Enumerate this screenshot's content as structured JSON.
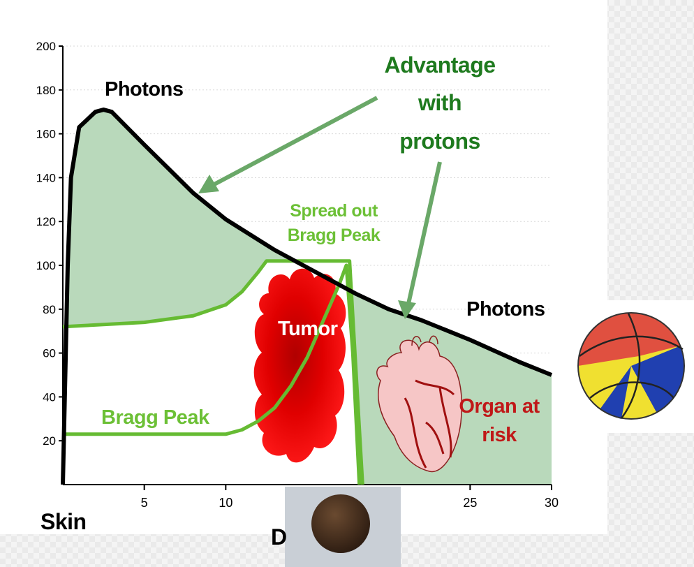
{
  "chart_data": {
    "type": "line",
    "xlim": [
      0,
      30
    ],
    "ylim": [
      0,
      200
    ],
    "xticks": [
      5,
      10,
      25,
      30
    ],
    "yticks": [
      20,
      40,
      60,
      80,
      100,
      120,
      140,
      160,
      180,
      200
    ],
    "grid": true,
    "x_label": "D",
    "x_start_label": "Skin",
    "fill_color": "#b9d9bb",
    "series": [
      {
        "name": "Photons",
        "color": "#000000",
        "x": [
          0,
          0.3,
          0.5,
          1,
          2,
          2.5,
          3,
          5,
          8,
          10,
          13,
          15,
          18,
          20,
          22,
          25,
          28,
          30
        ],
        "values": [
          0,
          100,
          140,
          163,
          170,
          171,
          170,
          155,
          133,
          121,
          107,
          99,
          87,
          80,
          75,
          66,
          56,
          50
        ]
      },
      {
        "name": "Spread out Bragg Peak",
        "color": "#66bb33",
        "x": [
          0,
          5,
          8,
          10,
          11,
          12,
          12.5,
          17.6,
          18.4
        ],
        "values": [
          72,
          74,
          77,
          82,
          88,
          97,
          102,
          102,
          0
        ]
      },
      {
        "name": "Bragg Peak",
        "color": "#66bb33",
        "x": [
          0,
          5,
          10,
          11,
          12,
          13,
          14,
          15,
          16,
          17,
          17.4,
          17.8,
          18.2
        ],
        "values": [
          23,
          23,
          23,
          25,
          29,
          35,
          45,
          58,
          75,
          92,
          100,
          60,
          0
        ]
      }
    ],
    "annotations": [
      {
        "text": "Photons"
      },
      {
        "text": "Advantage with protons"
      },
      {
        "text": "Tumor"
      },
      {
        "text": "Organ at risk"
      }
    ]
  }
}
